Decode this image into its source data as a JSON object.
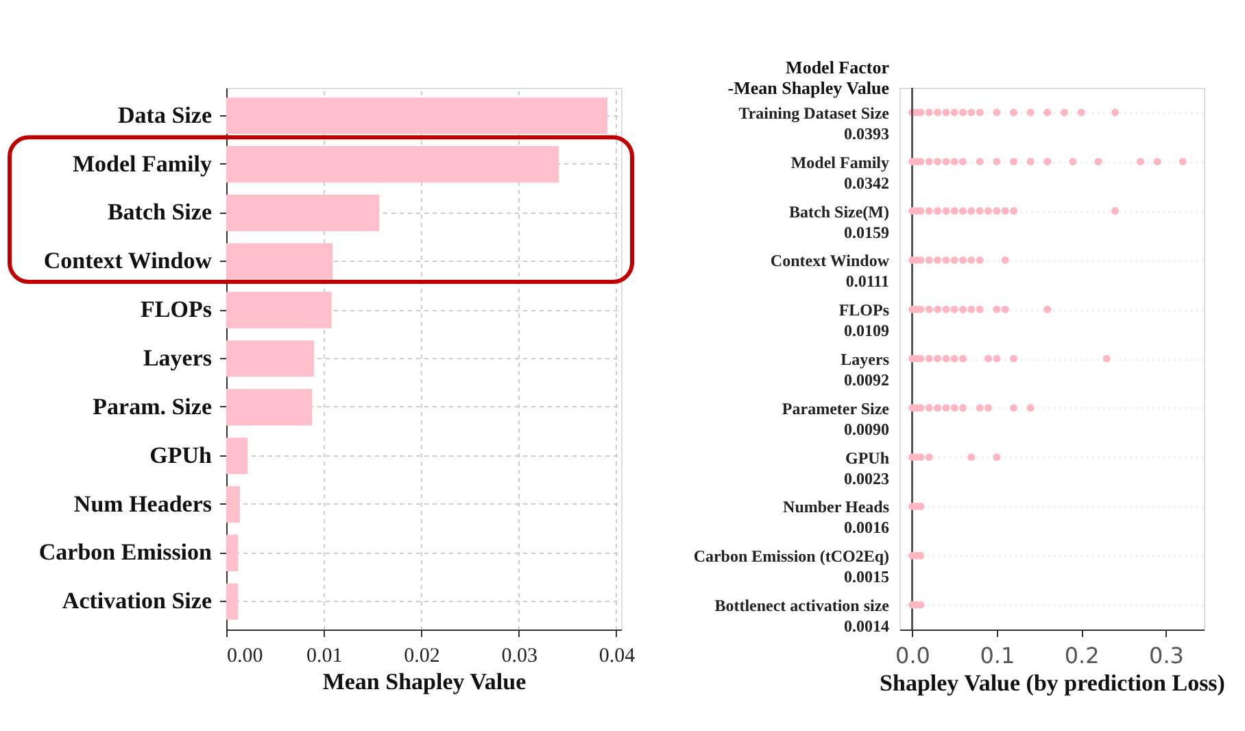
{
  "chart_data": [
    {
      "type": "bar",
      "orientation": "horizontal",
      "xlabel": "Mean Shapley Value",
      "categories": [
        "Data Size",
        "Model Family",
        "Batch Size",
        "Context Window",
        "FLOPs",
        "Layers",
        "Param. Size",
        "GPUh",
        "Num Headers",
        "Carbon Emission",
        "Activation Size"
      ],
      "values": [
        0.0391,
        0.0341,
        0.0157,
        0.0109,
        0.0108,
        0.009,
        0.0088,
        0.0022,
        0.0014,
        0.0012,
        0.0012
      ],
      "color": "#ffc0cb",
      "xlim": [
        0,
        0.0405
      ],
      "xticks": [
        {
          "value": 0,
          "label": "0.00"
        },
        {
          "value": 0.01,
          "label": "0.01"
        },
        {
          "value": 0.02,
          "label": "0.02"
        },
        {
          "value": 0.03,
          "label": "0.03"
        },
        {
          "value": 0.04,
          "label": "0.04"
        }
      ],
      "grid": true
    },
    {
      "type": "scatter",
      "orientation": "horizontal",
      "ylabel": "Model Factor\n-Mean Shapley Value",
      "xlabel": "Shapley Value (by prediction Loss)",
      "categories": [
        "Training Dataset Size\n0.0393",
        "Model Family\n0.0342",
        "Batch Size(M)\n0.0159",
        "Context Window\n0.0111",
        "FLOPs\n0.0109",
        "Layers\n0.0092",
        "Parameter Size\n0.0090",
        "GPUh\n0.0023",
        "Number Heads\n0.0016",
        "Carbon Emission (tCO2Eq)\n0.0015",
        "Bottlenect activation size\n0.0014"
      ],
      "series": [
        {
          "color": "#ffb6c1",
          "x": [
            "Training Dataset Size\n0.0393",
            "Training Dataset Size\n0.0393",
            "Training Dataset Size\n0.0393",
            "Training Dataset Size\n0.0393",
            "Training Dataset Size\n0.0393",
            "Training Dataset Size\n0.0393",
            "Training Dataset Size\n0.0393",
            "Training Dataset Size\n0.0393",
            "Training Dataset Size\n0.0393",
            "Training Dataset Size\n0.0393",
            "Training Dataset Size\n0.0393",
            "Training Dataset Size\n0.0393",
            "Training Dataset Size\n0.0393",
            "Training Dataset Size\n0.0393",
            "Training Dataset Size\n0.0393",
            "Training Dataset Size\n0.0393",
            "Training Dataset Size\n0.0393"
          ],
          "values": [
            0,
            0.005,
            0.01,
            0.02,
            0.03,
            0.04,
            0.05,
            0.06,
            0.07,
            0.08,
            0.1,
            0.12,
            0.14,
            0.16,
            0.18,
            0.2,
            0.24
          ]
        },
        {
          "color": "#ffb6c1",
          "x": [
            "Model Family\n0.0342",
            "Model Family\n0.0342",
            "Model Family\n0.0342",
            "Model Family\n0.0342",
            "Model Family\n0.0342",
            "Model Family\n0.0342",
            "Model Family\n0.0342",
            "Model Family\n0.0342",
            "Model Family\n0.0342",
            "Model Family\n0.0342",
            "Model Family\n0.0342",
            "Model Family\n0.0342",
            "Model Family\n0.0342",
            "Model Family\n0.0342",
            "Model Family\n0.0342",
            "Model Family\n0.0342",
            "Model Family\n0.0342",
            "Model Family\n0.0342"
          ],
          "values": [
            0,
            0.005,
            0.01,
            0.02,
            0.03,
            0.04,
            0.05,
            0.06,
            0.08,
            0.1,
            0.12,
            0.14,
            0.16,
            0.19,
            0.22,
            0.27,
            0.29,
            0.32
          ]
        },
        {
          "color": "#ffb6c1",
          "x": [
            "Batch Size(M)\n0.0159",
            "Batch Size(M)\n0.0159",
            "Batch Size(M)\n0.0159",
            "Batch Size(M)\n0.0159",
            "Batch Size(M)\n0.0159",
            "Batch Size(M)\n0.0159",
            "Batch Size(M)\n0.0159",
            "Batch Size(M)\n0.0159",
            "Batch Size(M)\n0.0159",
            "Batch Size(M)\n0.0159",
            "Batch Size(M)\n0.0159",
            "Batch Size(M)\n0.0159",
            "Batch Size(M)\n0.0159",
            "Batch Size(M)\n0.0159",
            "Batch Size(M)\n0.0159"
          ],
          "values": [
            0,
            0.005,
            0.01,
            0.02,
            0.03,
            0.04,
            0.05,
            0.06,
            0.07,
            0.08,
            0.09,
            0.1,
            0.11,
            0.12,
            0.24
          ]
        },
        {
          "color": "#ffb6c1",
          "x": [
            "Context Window\n0.0111",
            "Context Window\n0.0111",
            "Context Window\n0.0111",
            "Context Window\n0.0111",
            "Context Window\n0.0111",
            "Context Window\n0.0111",
            "Context Window\n0.0111",
            "Context Window\n0.0111",
            "Context Window\n0.0111",
            "Context Window\n0.0111",
            "Context Window\n0.0111"
          ],
          "values": [
            0,
            0.005,
            0.01,
            0.02,
            0.03,
            0.04,
            0.05,
            0.06,
            0.07,
            0.08,
            0.11
          ]
        },
        {
          "color": "#ffb6c1",
          "x": [
            "FLOPs\n0.0109",
            "FLOPs\n0.0109",
            "FLOPs\n0.0109",
            "FLOPs\n0.0109",
            "FLOPs\n0.0109",
            "FLOPs\n0.0109",
            "FLOPs\n0.0109",
            "FLOPs\n0.0109",
            "FLOPs\n0.0109",
            "FLOPs\n0.0109",
            "FLOPs\n0.0109",
            "FLOPs\n0.0109",
            "FLOPs\n0.0109"
          ],
          "values": [
            0,
            0.005,
            0.01,
            0.02,
            0.03,
            0.04,
            0.05,
            0.06,
            0.07,
            0.08,
            0.1,
            0.11,
            0.16
          ]
        },
        {
          "color": "#ffb6c1",
          "x": [
            "Layers\n0.0092",
            "Layers\n0.0092",
            "Layers\n0.0092",
            "Layers\n0.0092",
            "Layers\n0.0092",
            "Layers\n0.0092",
            "Layers\n0.0092",
            "Layers\n0.0092",
            "Layers\n0.0092",
            "Layers\n0.0092",
            "Layers\n0.0092",
            "Layers\n0.0092"
          ],
          "values": [
            0,
            0.005,
            0.01,
            0.02,
            0.03,
            0.04,
            0.05,
            0.06,
            0.09,
            0.1,
            0.12,
            0.23
          ]
        },
        {
          "color": "#ffb6c1",
          "x": [
            "Parameter Size\n0.0090",
            "Parameter Size\n0.0090",
            "Parameter Size\n0.0090",
            "Parameter Size\n0.0090",
            "Parameter Size\n0.0090",
            "Parameter Size\n0.0090",
            "Parameter Size\n0.0090",
            "Parameter Size\n0.0090",
            "Parameter Size\n0.0090",
            "Parameter Size\n0.0090",
            "Parameter Size\n0.0090",
            "Parameter Size\n0.0090"
          ],
          "values": [
            0,
            0.005,
            0.01,
            0.02,
            0.03,
            0.04,
            0.05,
            0.06,
            0.08,
            0.09,
            0.12,
            0.14
          ]
        },
        {
          "color": "#ffb6c1",
          "x": [
            "GPUh\n0.0023",
            "GPUh\n0.0023",
            "GPUh\n0.0023",
            "GPUh\n0.0023",
            "GPUh\n0.0023",
            "GPUh\n0.0023"
          ],
          "values": [
            0,
            0.005,
            0.01,
            0.02,
            0.07,
            0.1
          ]
        },
        {
          "color": "#ffb6c1",
          "x": [
            "Number Heads\n0.0016",
            "Number Heads\n0.0016",
            "Number Heads\n0.0016"
          ],
          "values": [
            0,
            0.005,
            0.01
          ]
        },
        {
          "color": "#ffb6c1",
          "x": [
            "Carbon Emission (tCO2Eq)\n0.0015",
            "Carbon Emission (tCO2Eq)\n0.0015",
            "Carbon Emission (tCO2Eq)\n0.0015"
          ],
          "values": [
            0,
            0.005,
            0.01
          ]
        },
        {
          "color": "#ffb6c1",
          "x": [
            "Bottlenect activation size\n0.0014",
            "Bottlenect activation size\n0.0014",
            "Bottlenect activation size\n0.0014"
          ],
          "values": [
            0,
            0.005,
            0.01
          ]
        }
      ],
      "xlim": [
        -0.015,
        0.345
      ],
      "xticks": [
        {
          "value": 0,
          "label": "0.0"
        },
        {
          "value": 0.1,
          "label": "0.1"
        },
        {
          "value": 0.2,
          "label": "0.2"
        },
        {
          "value": 0.3,
          "label": "0.3"
        }
      ],
      "ref_lines": [
        {
          "axis": "x",
          "value": 0,
          "color": "#555555"
        }
      ],
      "grid": "y",
      "marker": "circle"
    }
  ]
}
